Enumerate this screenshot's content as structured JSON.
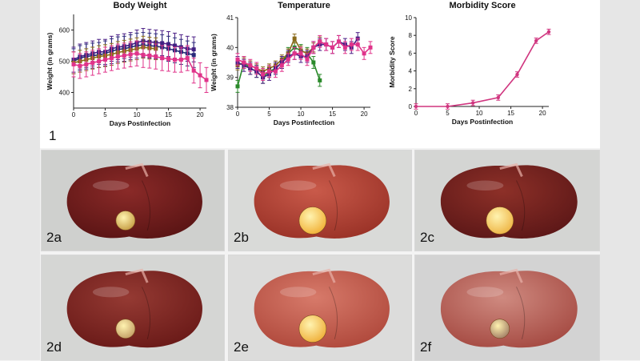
{
  "figure_label": "1",
  "chart_data": [
    {
      "type": "line",
      "title": "Body Weight",
      "xlabel": "Days Postinfection",
      "ylabel": "Weight (in grams)",
      "xlim": [
        0,
        21
      ],
      "ylim": [
        350,
        650
      ],
      "xticks": [
        0,
        5,
        10,
        15,
        20
      ],
      "yticks": [
        400,
        500,
        600
      ],
      "x": [
        0,
        1,
        2,
        3,
        4,
        5,
        6,
        7,
        8,
        9,
        10,
        11,
        12,
        13,
        14,
        15,
        16,
        17,
        18,
        19,
        20,
        21
      ],
      "series": [
        {
          "name": "group-purple",
          "color": "#4b1f86",
          "error": 40,
          "values": [
            505,
            515,
            520,
            525,
            530,
            530,
            540,
            545,
            548,
            552,
            560,
            565,
            562,
            560,
            558,
            555,
            550,
            545,
            540,
            538,
            null,
            null
          ]
        },
        {
          "name": "group-navy",
          "color": "#2a2a7a",
          "error": 40,
          "values": [
            500,
            510,
            515,
            518,
            520,
            525,
            532,
            538,
            540,
            545,
            550,
            552,
            550,
            548,
            545,
            540,
            535,
            530,
            525,
            520,
            null,
            null
          ]
        },
        {
          "name": "group-olive",
          "color": "#8a6a1a",
          "error": 35,
          "values": [
            495,
            500,
            505,
            510,
            515,
            518,
            522,
            528,
            532,
            536,
            540,
            545,
            542,
            540,
            null,
            null,
            null,
            null,
            null,
            null,
            null,
            null
          ]
        },
        {
          "name": "group-magenta",
          "color": "#e0338a",
          "error": 40,
          "values": [
            490,
            485,
            490,
            495,
            500,
            505,
            510,
            515,
            518,
            522,
            525,
            520,
            518,
            515,
            510,
            508,
            505,
            505,
            510,
            470,
            455,
            440
          ]
        }
      ]
    },
    {
      "type": "line",
      "title": "Temperature",
      "xlabel": "Days Postinfection",
      "ylabel": "Weight (in grams)",
      "xlim": [
        0,
        21
      ],
      "ylim": [
        38,
        41
      ],
      "xticks": [
        0,
        5,
        10,
        15,
        20
      ],
      "yticks": [
        38,
        39,
        40,
        41
      ],
      "x": [
        0,
        1,
        2,
        3,
        4,
        5,
        6,
        7,
        8,
        9,
        10,
        11,
        12,
        13,
        14,
        15,
        16,
        17,
        18,
        19,
        20,
        21
      ],
      "series": [
        {
          "name": "group-green",
          "color": "#2a8a2a",
          "error": 0.2,
          "values": [
            38.7,
            39.5,
            39.3,
            39.2,
            39.0,
            39.2,
            39.3,
            39.5,
            39.8,
            40.0,
            39.9,
            39.8,
            39.5,
            38.9,
            null,
            null,
            null,
            null,
            null,
            null,
            null,
            null
          ]
        },
        {
          "name": "group-olive",
          "color": "#8a6a1a",
          "error": 0.15,
          "values": [
            39.4,
            39.5,
            39.4,
            39.3,
            39.2,
            39.3,
            39.4,
            39.6,
            39.8,
            40.3,
            39.9,
            39.8,
            40.0,
            40.2,
            null,
            null,
            null,
            null,
            null,
            null,
            null,
            null
          ]
        },
        {
          "name": "group-purple",
          "color": "#4b1f86",
          "error": 0.2,
          "values": [
            39.5,
            39.4,
            39.3,
            39.2,
            39.0,
            39.1,
            39.3,
            39.5,
            39.7,
            39.8,
            39.7,
            39.7,
            40.0,
            40.1,
            40.1,
            40.0,
            40.2,
            40.1,
            40.0,
            40.3,
            null,
            null
          ]
        },
        {
          "name": "group-magenta",
          "color": "#e0338a",
          "error": 0.2,
          "values": [
            39.6,
            39.5,
            39.4,
            39.3,
            39.1,
            39.2,
            39.2,
            39.4,
            39.6,
            39.8,
            39.8,
            39.6,
            40.0,
            40.2,
            40.1,
            40.0,
            40.2,
            40.0,
            40.1,
            40.1,
            39.8,
            40.0
          ]
        }
      ]
    },
    {
      "type": "line",
      "title": "Morbidity Score",
      "xlabel": "Days Postinfection",
      "ylabel": "Morbidity Score",
      "xlim": [
        0,
        21
      ],
      "ylim": [
        0,
        10
      ],
      "xticks": [
        0,
        5,
        10,
        15,
        20
      ],
      "yticks": [
        0,
        2,
        4,
        6,
        8,
        10
      ],
      "x": [
        0,
        5,
        9,
        13,
        16,
        19,
        21
      ],
      "series": [
        {
          "name": "morbidity",
          "color": "#d0357f",
          "error": 0.3,
          "values": [
            0,
            0,
            0.4,
            1.0,
            3.6,
            7.4,
            8.4
          ]
        }
      ]
    }
  ],
  "photos": [
    {
      "label": "2a",
      "bg": "#cfd0ce",
      "liver": "#5a1414",
      "tint": "#8a2a28",
      "gb": "#c9a24a",
      "gb_size": "small"
    },
    {
      "label": "2b",
      "bg": "#d9dad8",
      "liver": "#9a3227",
      "tint": "#c95a4a",
      "gb": "#f2b43c",
      "gb_size": "large"
    },
    {
      "label": "2c",
      "bg": "#d4d5d3",
      "liver": "#5c1717",
      "tint": "#8d3028",
      "gb": "#efb84a",
      "gb_size": "large"
    },
    {
      "label": "2d",
      "bg": "#d5d6d4",
      "liver": "#6a1a18",
      "tint": "#953a33",
      "gb": "#c7a36a",
      "gb_size": "small"
    },
    {
      "label": "2e",
      "bg": "#dcdcdb",
      "liver": "#b0493c",
      "tint": "#d77a6a",
      "gb": "#f0b340",
      "gb_size": "large"
    },
    {
      "label": "2f",
      "bg": "#d3d3d3",
      "liver": "#a54a42",
      "tint": "#cf8a80",
      "gb": "#a8866a",
      "gb_size": "small"
    }
  ]
}
